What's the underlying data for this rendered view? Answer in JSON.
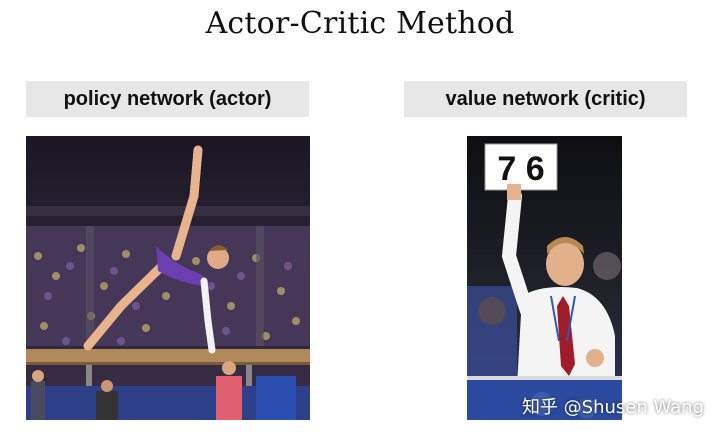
{
  "title": "Actor-Critic Method",
  "left_panel": {
    "label": "policy network (actor)"
  },
  "right_panel": {
    "label": "value network (critic)",
    "score_card": "7 6"
  },
  "watermark": "知乎 @Shusen Wang"
}
